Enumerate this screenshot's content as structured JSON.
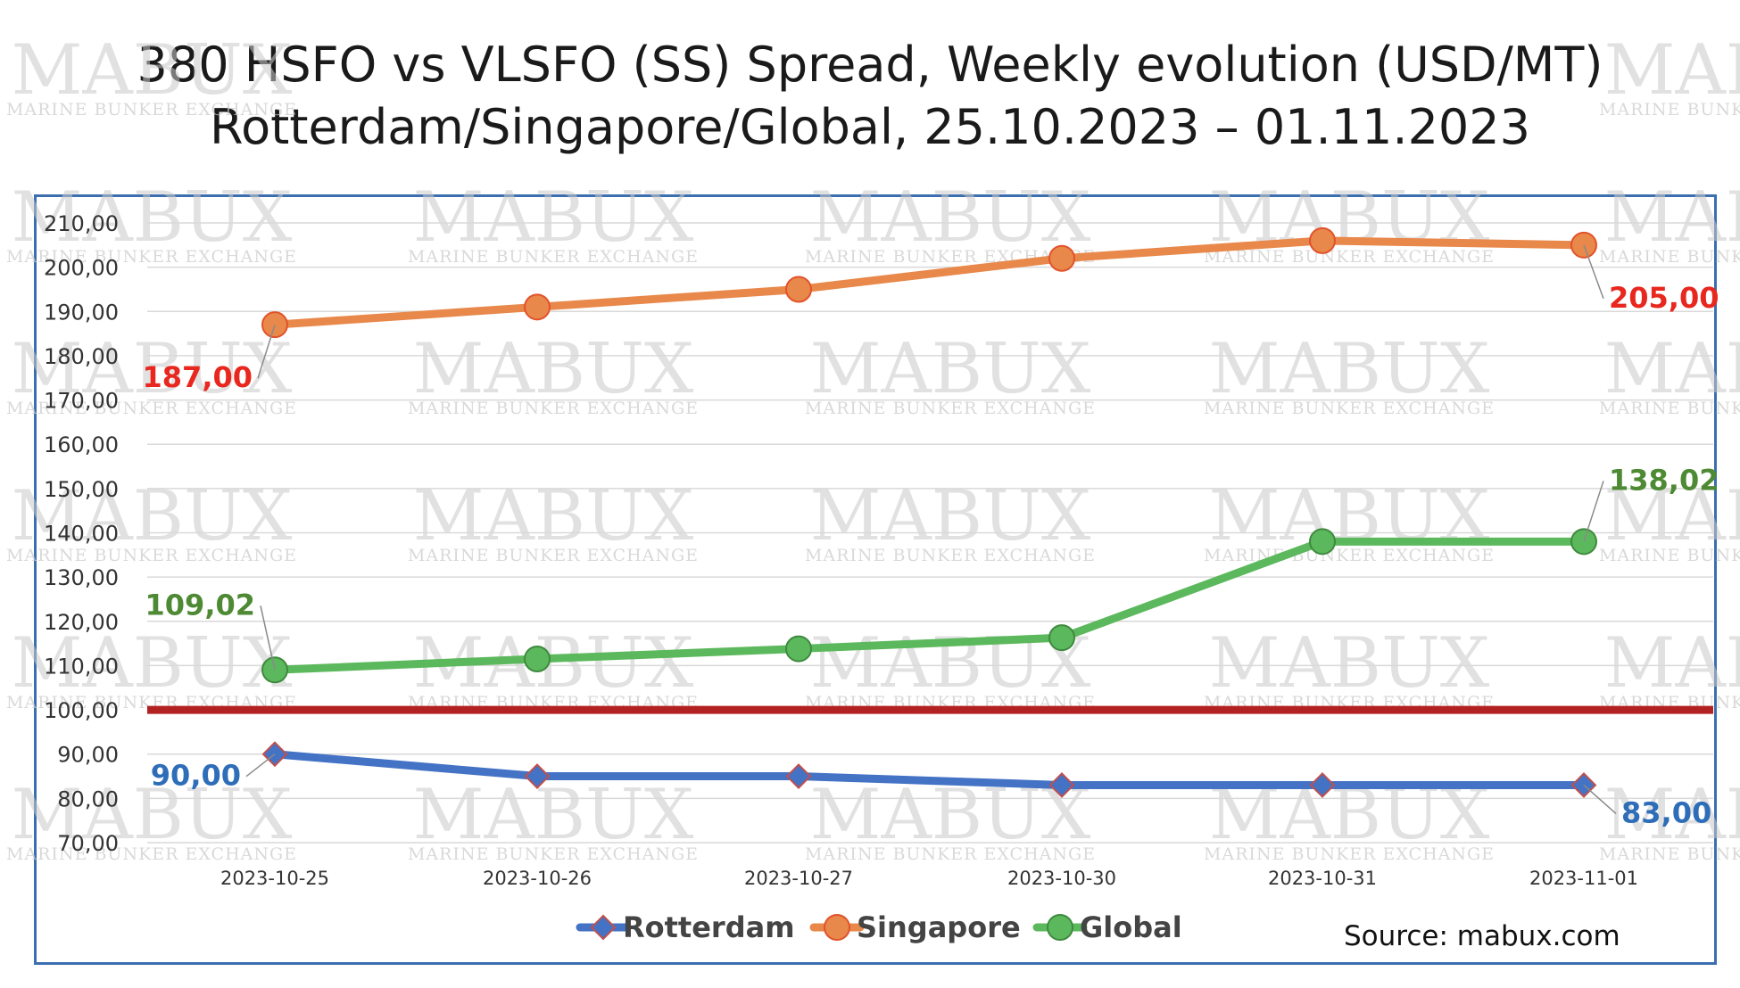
{
  "title_line1": "380 HSFO vs VLSFO (SS) Spread, Weekly evolution (USD/MT)",
  "title_line2": "Rotterdam/Singapore/Global, 25.10.2023 – 01.11.2023",
  "source": "Source: mabux.com",
  "watermark": {
    "brand": "MABUX",
    "tagline": "MARINE BUNKER EXCHANGE"
  },
  "chart_data": {
    "type": "line",
    "categories": [
      "2023-10-25",
      "2023-10-26",
      "2023-10-27",
      "2023-10-30",
      "2023-10-31",
      "2023-11-01"
    ],
    "ylim": [
      70,
      210
    ],
    "ytick_labels": [
      "70,00",
      "80,00",
      "90,00",
      "100,00",
      "110,00",
      "120,00",
      "130,00",
      "140,00",
      "150,00",
      "160,00",
      "170,00",
      "180,00",
      "190,00",
      "200,00",
      "210,00"
    ],
    "grid": true,
    "legend_position": "bottom",
    "reference_line": {
      "value": 100,
      "color": "#b22222"
    },
    "series": [
      {
        "name": "Rotterdam",
        "color": "#4472c4",
        "marker": "diamond",
        "values": [
          90,
          85,
          85,
          83,
          83,
          83
        ],
        "labels": [
          {
            "index": 0,
            "text": "90,00"
          },
          {
            "index": 5,
            "text": "83,00"
          }
        ],
        "label_color": "#2e6db8"
      },
      {
        "name": "Singapore",
        "color": "#e8884a",
        "marker": "circle",
        "values": [
          187,
          191,
          195,
          202,
          206,
          205
        ],
        "labels": [
          {
            "index": 0,
            "text": "187,00"
          },
          {
            "index": 5,
            "text": "205,00"
          }
        ],
        "label_color": "#e8271e"
      },
      {
        "name": "Global",
        "color": "#5cb85c",
        "marker": "circle",
        "values": [
          109.02,
          111.5,
          113.8,
          116.3,
          138.02,
          138.02
        ],
        "labels": [
          {
            "index": 0,
            "text": "109,02"
          },
          {
            "index": 5,
            "text": "138,02"
          }
        ],
        "label_color": "#4e8a34"
      }
    ]
  }
}
